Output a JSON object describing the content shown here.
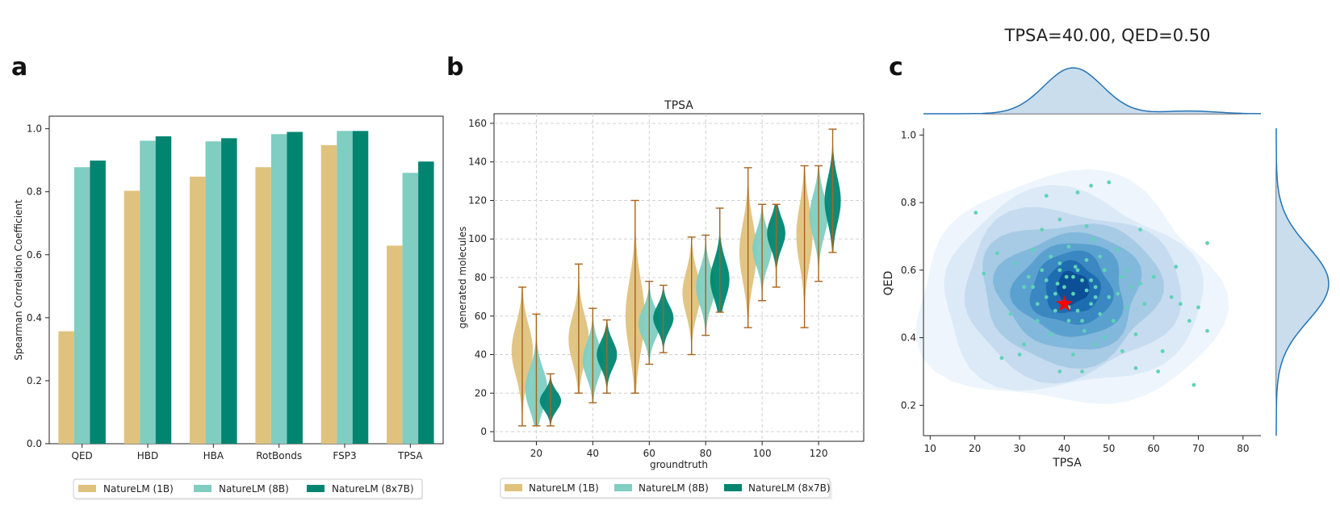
{
  "panels": {
    "a": "a",
    "b": "b",
    "c": "c"
  },
  "colors": {
    "m1": "#dfc27d",
    "m2": "#80cdc1",
    "m3": "#018571",
    "whisker": "#a8641c",
    "star": "#ff0000",
    "kde_line": "#2474b5",
    "points": "#5fd3b8"
  },
  "chart_data": [
    {
      "type": "bar",
      "panel": "a",
      "categories": [
        "QED",
        "HBD",
        "HBA",
        "RotBonds",
        "FSP3",
        "TPSA"
      ],
      "series": [
        {
          "name": "NatureLM (1B)",
          "values": [
            0.357,
            0.803,
            0.848,
            0.878,
            0.948,
            0.629
          ]
        },
        {
          "name": "NatureLM (8B)",
          "values": [
            0.878,
            0.962,
            0.96,
            0.983,
            0.993,
            0.86
          ]
        },
        {
          "name": "NatureLM (8x7B)",
          "values": [
            0.899,
            0.976,
            0.97,
            0.99,
            0.993,
            0.896
          ]
        }
      ],
      "ylabel": "Spearman Correlation Coefficient",
      "xlabel": "",
      "ylim": [
        0,
        1.04
      ],
      "yticks": [
        "0.0",
        "0.2",
        "0.4",
        "0.6",
        "0.8",
        "1.0"
      ],
      "legend": [
        "NatureLM (1B)",
        "NatureLM (8B)",
        "NatureLM (8x7B)"
      ]
    },
    {
      "type": "violin",
      "panel": "b",
      "title": "TPSA",
      "xlabel": "groundtruth",
      "ylabel": "generated molecules",
      "xlim": [
        5,
        136
      ],
      "ylim": [
        -5,
        165
      ],
      "xticks": [
        "20",
        "40",
        "60",
        "80",
        "100",
        "120"
      ],
      "yticks": [
        "0",
        "20",
        "40",
        "60",
        "80",
        "100",
        "120",
        "140",
        "160"
      ],
      "series": [
        {
          "name": "NatureLM (1B)",
          "groups": [
            {
              "x": 15,
              "min": 3,
              "max": 75,
              "center": 42,
              "width": 4.2
            },
            {
              "x": 35,
              "min": 20,
              "max": 87,
              "center": 48,
              "width": 4.0
            },
            {
              "x": 55,
              "min": 20,
              "max": 120,
              "center": 60,
              "width": 3.8
            },
            {
              "x": 75,
              "min": 40,
              "max": 101,
              "center": 72,
              "width": 3.6
            },
            {
              "x": 95,
              "min": 54,
              "max": 137,
              "center": 93,
              "width": 3.4
            },
            {
              "x": 115,
              "min": 54,
              "max": 138,
              "center": 102,
              "width": 3.2
            }
          ]
        },
        {
          "name": "NatureLM (8B)",
          "groups": [
            {
              "x": 20,
              "min": 3,
              "max": 61,
              "center": 22,
              "width": 4.4
            },
            {
              "x": 40,
              "min": 15,
              "max": 64,
              "center": 37,
              "width": 4.0
            },
            {
              "x": 60,
              "min": 35,
              "max": 78,
              "center": 56,
              "width": 4.2
            },
            {
              "x": 80,
              "min": 50,
              "max": 102,
              "center": 75,
              "width": 3.8
            },
            {
              "x": 100,
              "min": 68,
              "max": 118,
              "center": 95,
              "width": 3.8
            },
            {
              "x": 120,
              "min": 78,
              "max": 138,
              "center": 112,
              "width": 3.6
            }
          ]
        },
        {
          "name": "NatureLM (8x7B)",
          "groups": [
            {
              "x": 25,
              "min": 3,
              "max": 30,
              "center": 16,
              "width": 4.2
            },
            {
              "x": 45,
              "min": 20,
              "max": 58,
              "center": 40,
              "width": 4.0
            },
            {
              "x": 65,
              "min": 41,
              "max": 76,
              "center": 59,
              "width": 4.0
            },
            {
              "x": 85,
              "min": 62,
              "max": 116,
              "center": 79,
              "width": 3.8
            },
            {
              "x": 105,
              "min": 75,
              "max": 118,
              "center": 103,
              "width": 3.6
            },
            {
              "x": 125,
              "min": 93,
              "max": 157,
              "center": 120,
              "width": 3.2
            }
          ]
        }
      ],
      "legend": [
        "NatureLM (1B)",
        "NatureLM (8B)",
        "NatureLM (8x7B)"
      ]
    },
    {
      "type": "scatter",
      "panel": "c",
      "title": "TPSA=40.00, QED=0.50",
      "xlabel": "TPSA",
      "ylabel": "QED",
      "xlim": [
        8.5,
        84
      ],
      "ylim": [
        0.11,
        1.02
      ],
      "xticks": [
        "10",
        "20",
        "30",
        "40",
        "50",
        "60",
        "70",
        "80"
      ],
      "yticks": [
        "0.2",
        "0.4",
        "0.6",
        "0.8",
        "1.0"
      ],
      "target": {
        "x": 40,
        "y": 0.5
      },
      "kde_center": {
        "x": 42,
        "y": 0.55
      },
      "points": [
        [
          20.2,
          0.77
        ],
        [
          22,
          0.59
        ],
        [
          25,
          0.65
        ],
        [
          26,
          0.34
        ],
        [
          28,
          0.47
        ],
        [
          29,
          0.62
        ],
        [
          30,
          0.35
        ],
        [
          31,
          0.38
        ],
        [
          33,
          0.55
        ],
        [
          34,
          0.45
        ],
        [
          35,
          0.6
        ],
        [
          36,
          0.52
        ],
        [
          37,
          0.64
        ],
        [
          38,
          0.48
        ],
        [
          38.5,
          0.56
        ],
        [
          39,
          0.62
        ],
        [
          40,
          0.5
        ],
        [
          40.5,
          0.58
        ],
        [
          41,
          0.45
        ],
        [
          42,
          0.53
        ],
        [
          42.5,
          0.61
        ],
        [
          43,
          0.48
        ],
        [
          44,
          0.57
        ],
        [
          44.5,
          0.42
        ],
        [
          45,
          0.63
        ],
        [
          46,
          0.5
        ],
        [
          46.5,
          0.69
        ],
        [
          47,
          0.55
        ],
        [
          48,
          0.47
        ],
        [
          49,
          0.6
        ],
        [
          50,
          0.52
        ],
        [
          51,
          0.45
        ],
        [
          52,
          0.66
        ],
        [
          53,
          0.58
        ],
        [
          54,
          0.49
        ],
        [
          55,
          0.55
        ],
        [
          56,
          0.41
        ],
        [
          57,
          0.72
        ],
        [
          58,
          0.5
        ],
        [
          60,
          0.58
        ],
        [
          61,
          0.3
        ],
        [
          62,
          0.36
        ],
        [
          64,
          0.52
        ],
        [
          65,
          0.61
        ],
        [
          66,
          0.5
        ],
        [
          68,
          0.45
        ],
        [
          69,
          0.26
        ],
        [
          70,
          0.49
        ],
        [
          72,
          0.42
        ],
        [
          72,
          0.68
        ],
        [
          42,
          0.35
        ],
        [
          44,
          0.3
        ],
        [
          39,
          0.3
        ],
        [
          36,
          0.82
        ],
        [
          43,
          0.83
        ],
        [
          46,
          0.85
        ],
        [
          50,
          0.86
        ],
        [
          35,
          0.72
        ],
        [
          32,
          0.58
        ],
        [
          33,
          0.66
        ],
        [
          47,
          0.38
        ],
        [
          49,
          0.4
        ],
        [
          53,
          0.36
        ],
        [
          56,
          0.31
        ],
        [
          41,
          0.67
        ],
        [
          45,
          0.73
        ],
        [
          39,
          0.75
        ],
        [
          37,
          0.41
        ],
        [
          34,
          0.5
        ],
        [
          31,
          0.55
        ],
        [
          48,
          0.64
        ],
        [
          52,
          0.53
        ],
        [
          54,
          0.6
        ],
        [
          57,
          0.56
        ],
        [
          44,
          0.45
        ],
        [
          40,
          0.55
        ],
        [
          42,
          0.58
        ],
        [
          38,
          0.53
        ],
        [
          43,
          0.6
        ],
        [
          41,
          0.49
        ],
        [
          46,
          0.57
        ],
        [
          36,
          0.57
        ],
        [
          47,
          0.52
        ],
        [
          39,
          0.6
        ],
        [
          45,
          0.54
        ]
      ]
    }
  ]
}
